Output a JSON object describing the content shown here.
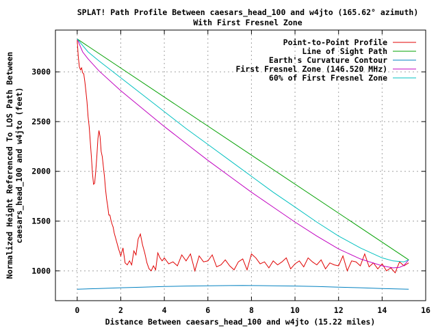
{
  "chart_data": {
    "type": "line",
    "title": "SPLAT! Path Profile Between caesars_head_100 and w4jto (165.62° azimuth)",
    "subtitle": "With First Fresnel Zone",
    "xlabel": "Distance Between caesars_head_100 and w4jto (15.22 miles)",
    "ylabel_line1": "Normalized Height Referenced To LOS Path Between",
    "ylabel_line2": "caesars_head_100 and w4jto (feet)",
    "xlim": [
      -1,
      16
    ],
    "ylim": [
      700,
      3420
    ],
    "xticks": [
      0,
      2,
      4,
      6,
      8,
      10,
      12,
      14,
      16
    ],
    "xtick_labels": [
      "0",
      "2",
      "4",
      "6",
      "8",
      "10",
      "12",
      "14",
      "16"
    ],
    "yticks": [
      1000,
      1500,
      2000,
      2500,
      3000
    ],
    "ytick_labels": [
      "1000",
      "1500",
      "2000",
      "2500",
      "3000"
    ],
    "grid": true,
    "legend_position": "top-right",
    "series": [
      {
        "name": "Point-to-Point Profile",
        "color": "#e00000",
        "x": [
          0,
          0.05,
          0.1,
          0.15,
          0.2,
          0.25,
          0.3,
          0.35,
          0.4,
          0.45,
          0.5,
          0.55,
          0.6,
          0.65,
          0.7,
          0.75,
          0.8,
          0.85,
          0.9,
          0.95,
          1.0,
          1.05,
          1.1,
          1.15,
          1.2,
          1.25,
          1.3,
          1.35,
          1.4,
          1.45,
          1.5,
          1.55,
          1.6,
          1.65,
          1.7,
          1.8,
          1.9,
          2.0,
          2.1,
          2.2,
          2.3,
          2.4,
          2.5,
          2.6,
          2.7,
          2.8,
          2.9,
          3.0,
          3.1,
          3.2,
          3.3,
          3.4,
          3.5,
          3.6,
          3.7,
          3.8,
          3.9,
          4.0,
          4.2,
          4.4,
          4.6,
          4.8,
          5.0,
          5.2,
          5.4,
          5.6,
          5.8,
          6.0,
          6.2,
          6.4,
          6.6,
          6.8,
          7.0,
          7.2,
          7.4,
          7.6,
          7.8,
          8.0,
          8.2,
          8.4,
          8.6,
          8.8,
          9.0,
          9.2,
          9.4,
          9.6,
          9.8,
          10.0,
          10.2,
          10.4,
          10.6,
          10.8,
          11.0,
          11.2,
          11.4,
          11.6,
          11.8,
          12.0,
          12.2,
          12.4,
          12.6,
          12.8,
          13.0,
          13.2,
          13.4,
          13.6,
          13.8,
          14.0,
          14.2,
          14.4,
          14.6,
          14.8,
          15.0,
          15.22
        ],
        "y": [
          3320,
          3150,
          3050,
          3020,
          3040,
          2990,
          2980,
          2900,
          2800,
          2700,
          2550,
          2450,
          2300,
          2150,
          1980,
          1870,
          1880,
          2000,
          2150,
          2330,
          2410,
          2350,
          2200,
          2150,
          2050,
          1950,
          1820,
          1720,
          1650,
          1560,
          1560,
          1510,
          1470,
          1440,
          1380,
          1300,
          1220,
          1150,
          1230,
          1080,
          1060,
          1100,
          1060,
          1200,
          1160,
          1320,
          1370,
          1260,
          1180,
          1080,
          1020,
          1000,
          1050,
          1010,
          1180,
          1130,
          1100,
          1130,
          1070,
          1090,
          1050,
          1160,
          1100,
          1170,
          1000,
          1150,
          1090,
          1100,
          1160,
          1040,
          1060,
          1110,
          1050,
          1010,
          1090,
          1120,
          1010,
          1170,
          1130,
          1070,
          1090,
          1030,
          1100,
          1060,
          1090,
          1130,
          1020,
          1070,
          1100,
          1040,
          1130,
          1090,
          1060,
          1110,
          1020,
          1080,
          1060,
          1050,
          1150,
          1000,
          1100,
          1090,
          1050,
          1170,
          1040,
          1080,
          1020,
          1070,
          1000,
          1030,
          980,
          1090,
          1050,
          1080
        ]
      },
      {
        "name": "Line of Sight Path",
        "color": "#00a000",
        "x": [
          0,
          15.22
        ],
        "y": [
          3330,
          1110
        ]
      },
      {
        "name": "Earth's Curvature Contour",
        "color": "#0080c0",
        "x": [
          0,
          1,
          2,
          3,
          4,
          5,
          6,
          7,
          7.6,
          8,
          9,
          10,
          11,
          12,
          13,
          14,
          15.22
        ],
        "y": [
          815,
          822,
          830,
          836,
          842,
          847,
          850,
          852,
          853,
          852,
          850,
          847,
          842,
          836,
          830,
          822,
          815
        ]
      },
      {
        "name": "First Fresnel Zone (146.520 MHz)",
        "color": "#c000c0",
        "x": [
          0,
          0.25,
          0.5,
          1,
          2,
          3,
          4,
          5,
          6,
          7,
          8,
          9,
          10,
          11,
          12,
          13,
          14,
          14.5,
          14.8,
          15.0,
          15.22
        ],
        "y": [
          3330,
          3200,
          3130,
          3010,
          2810,
          2630,
          2450,
          2280,
          2110,
          1950,
          1790,
          1640,
          1490,
          1350,
          1220,
          1120,
          1050,
          1030,
          1035,
          1055,
          1110
        ]
      },
      {
        "name": "60% of First Fresnel Zone",
        "color": "#00c0c0",
        "x": [
          0,
          0.5,
          1,
          2,
          3,
          4,
          5,
          6,
          7,
          8,
          9,
          10,
          11,
          12,
          13,
          14,
          14.5,
          15.0,
          15.22
        ],
        "y": [
          3330,
          3200,
          3110,
          2940,
          2770,
          2600,
          2430,
          2270,
          2110,
          1950,
          1790,
          1640,
          1490,
          1350,
          1230,
          1130,
          1100,
          1090,
          1110
        ]
      }
    ]
  }
}
